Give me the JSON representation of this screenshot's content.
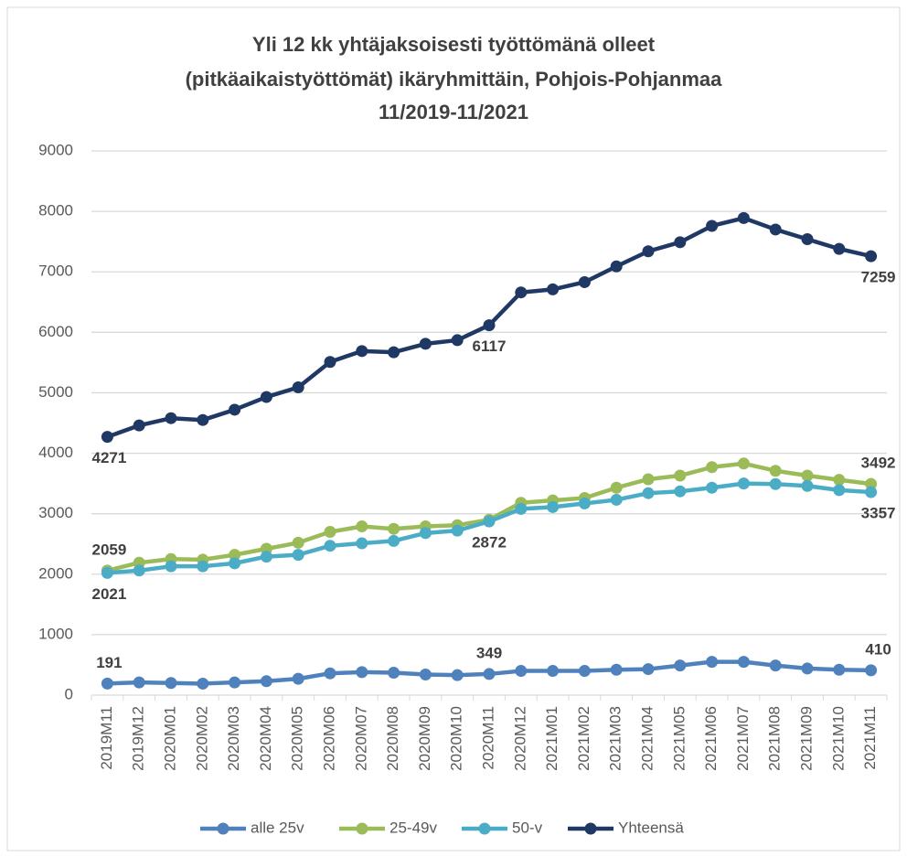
{
  "chart_data": {
    "type": "line",
    "title": [
      "Yli 12 kk yhtäjaksoisesti työttömänä olleet",
      "(pitkäaikaistyöttömät) ikäryhmittäin, Pohjois-Pohjanmaa",
      "11/2019-11/2021"
    ],
    "categories": [
      "2019M11",
      "2019M12",
      "2020M01",
      "2020M02",
      "2020M03",
      "2020M04",
      "2020M05",
      "2020M06",
      "2020M07",
      "2020M08",
      "2020M09",
      "2020M10",
      "2020M11",
      "2020M12",
      "2021M01",
      "2021M02",
      "2021M03",
      "2021M04",
      "2021M05",
      "2021M06",
      "2021M07",
      "2021M08",
      "2021M09",
      "2021M10",
      "2021M11"
    ],
    "series": [
      {
        "name": "alle 25v",
        "color": "#4f81bd",
        "label_position": "above",
        "labels_at": [
          0,
          12,
          24
        ],
        "values": [
          191,
          210,
          200,
          190,
          210,
          230,
          270,
          360,
          380,
          370,
          340,
          330,
          349,
          400,
          400,
          400,
          420,
          430,
          490,
          550,
          550,
          490,
          440,
          420,
          410
        ]
      },
      {
        "name": "25-49v",
        "color": "#9bbb59",
        "label_position": "above",
        "labels_at": [
          0,
          24
        ],
        "values": [
          2059,
          2190,
          2250,
          2240,
          2320,
          2420,
          2520,
          2700,
          2790,
          2750,
          2790,
          2810,
          2900,
          3180,
          3220,
          3260,
          3430,
          3570,
          3630,
          3770,
          3830,
          3710,
          3630,
          3560,
          3492
        ]
      },
      {
        "name": "50-v",
        "color": "#4bacc6",
        "label_position": "below",
        "labels_at": [
          0,
          12,
          24
        ],
        "values": [
          2021,
          2060,
          2130,
          2130,
          2180,
          2290,
          2320,
          2470,
          2510,
          2550,
          2680,
          2720,
          2872,
          3080,
          3110,
          3170,
          3230,
          3340,
          3370,
          3430,
          3500,
          3490,
          3460,
          3390,
          3357
        ]
      },
      {
        "name": "Yhteensä",
        "color": "#1f3864",
        "label_position": "below",
        "labels_at": [
          0,
          12,
          24
        ],
        "values": [
          4271,
          4460,
          4580,
          4550,
          4720,
          4930,
          5090,
          5510,
          5690,
          5670,
          5810,
          5870,
          6117,
          6660,
          6710,
          6830,
          7090,
          7340,
          7490,
          7760,
          7890,
          7700,
          7540,
          7380,
          7259
        ]
      }
    ],
    "ylim": [
      0,
      9000
    ],
    "yticks": [
      0,
      1000,
      2000,
      3000,
      4000,
      5000,
      6000,
      7000,
      8000,
      9000
    ],
    "grid": true,
    "legend": "bottom"
  }
}
